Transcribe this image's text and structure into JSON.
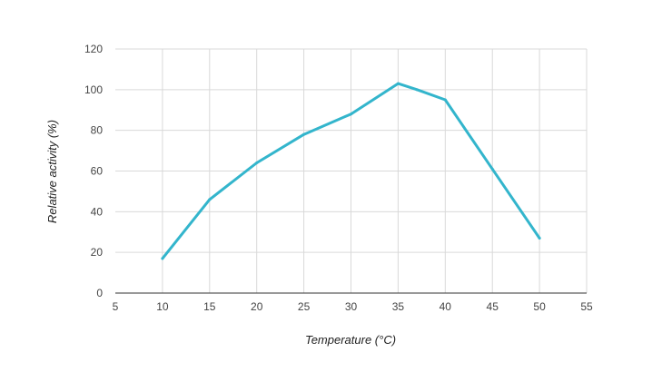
{
  "chart_data": {
    "type": "line",
    "title": "",
    "xlabel": "Temperature (°C)",
    "ylabel": "Relative activity (%)",
    "xlim": [
      5,
      55
    ],
    "ylim": [
      0,
      120
    ],
    "xticks": [
      5,
      10,
      15,
      20,
      25,
      30,
      35,
      40,
      45,
      50,
      55
    ],
    "yticks": [
      0,
      20,
      40,
      60,
      80,
      100,
      120
    ],
    "grid": true,
    "series": [
      {
        "name": "Relative activity",
        "color": "#33b5cc",
        "points": [
          {
            "x": 10,
            "y": 17
          },
          {
            "x": 15,
            "y": 46
          },
          {
            "x": 20,
            "y": 64
          },
          {
            "x": 25,
            "y": 78
          },
          {
            "x": 30,
            "y": 88
          },
          {
            "x": 35,
            "y": 103
          },
          {
            "x": 37,
            "y": 100
          },
          {
            "x": 40,
            "y": 95
          },
          {
            "x": 45,
            "y": 61
          },
          {
            "x": 50,
            "y": 27
          }
        ]
      }
    ]
  }
}
